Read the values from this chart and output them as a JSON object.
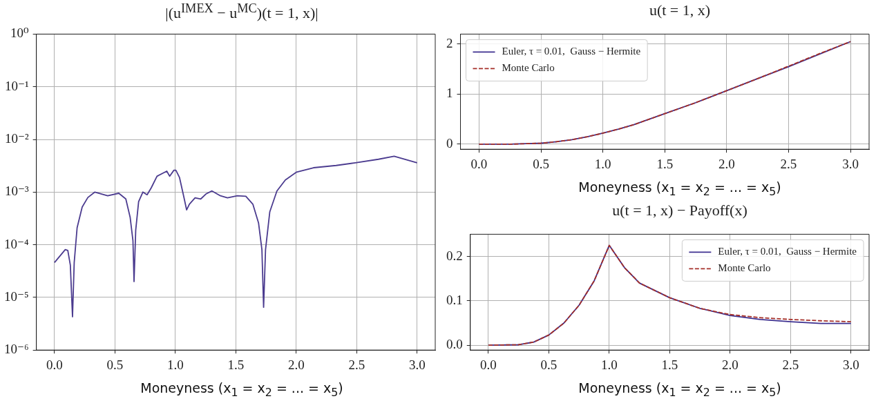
{
  "chart_data": [
    {
      "type": "line",
      "title": "|(u$^{IMEX}$ − u$^{MC}$)(t = 1, x)|",
      "xlabel": "Moneyness (x$_{1}$ = x$_{2}$ = ... = x$_{5}$)",
      "log": "y",
      "grid": true,
      "xlim": [
        -0.15,
        3.15
      ],
      "ylim": [
        1e-06,
        1
      ],
      "xticks": [
        {
          "value": 0,
          "label": "0.0"
        },
        {
          "value": 0.5,
          "label": "0.5"
        },
        {
          "value": 1,
          "label": "1.0"
        },
        {
          "value": 1.5,
          "label": "1.5"
        },
        {
          "value": 2,
          "label": "2.0"
        },
        {
          "value": 2.5,
          "label": "2.5"
        },
        {
          "value": 3,
          "label": "3.0"
        }
      ],
      "yticks": [
        {
          "value": 1e-06,
          "label": "10⁻⁶"
        },
        {
          "value": 1e-05,
          "label": "10⁻⁵"
        },
        {
          "value": 0.0001,
          "label": "10⁻⁴"
        },
        {
          "value": 0.001,
          "label": "10⁻³"
        },
        {
          "value": 0.01,
          "label": "10⁻²"
        },
        {
          "value": 0.1,
          "label": "10⁻¹"
        },
        {
          "value": 1,
          "label": "10⁰"
        }
      ],
      "x": [
        0,
        0.089,
        0.11,
        0.131,
        0.149,
        0.163,
        0.187,
        0.229,
        0.276,
        0.334,
        0.44,
        0.532,
        0.59,
        0.626,
        0.649,
        0.658,
        0.672,
        0.696,
        0.731,
        0.766,
        0.8,
        0.848,
        0.929,
        0.953,
        0.988,
        1.004,
        1.034,
        1.069,
        1.093,
        1.116,
        1.163,
        1.21,
        1.256,
        1.303,
        1.373,
        1.431,
        1.513,
        1.583,
        1.641,
        1.688,
        1.716,
        1.73,
        1.746,
        1.781,
        1.84,
        1.91,
        2.003,
        2.143,
        2.33,
        2.49,
        2.68,
        2.81,
        3.0
      ],
      "series": [
        {
          "color": "#4b3b8f",
          "values": [
            4.6e-05,
            8.1e-05,
            7.8e-05,
            4.1e-05,
            4.3e-06,
            4.6e-05,
            0.00021,
            0.00052,
            0.00079,
            0.001,
            0.00085,
            0.00095,
            0.00074,
            0.00033,
            0.00012,
            2e-05,
            0.00019,
            0.00066,
            0.001,
            0.00089,
            0.0012,
            0.002,
            0.0025,
            0.002,
            0.0026,
            0.0026,
            0.0019,
            0.00083,
            0.00046,
            0.00059,
            0.00078,
            0.00074,
            0.00093,
            0.00105,
            0.00085,
            0.00078,
            0.00085,
            0.00083,
            0.00059,
            0.00026,
            8.1e-05,
            6.5e-06,
            8.1e-05,
            0.00042,
            0.00105,
            0.0017,
            0.0024,
            0.0029,
            0.0032,
            0.0036,
            0.0042,
            0.0048,
            0.0036
          ]
        }
      ]
    },
    {
      "type": "line",
      "title": "u(t = 1, x)",
      "xlabel": "Moneyness (x$_{1}$ = x$_{2}$ = ... = x$_{5}$)",
      "grid": true,
      "legend": "top left",
      "xlim": [
        -0.15,
        3.15
      ],
      "ylim": [
        -0.1,
        2.2
      ],
      "xticks": [
        {
          "value": 0,
          "label": "0.0"
        },
        {
          "value": 0.5,
          "label": "0.5"
        },
        {
          "value": 1,
          "label": "1.0"
        },
        {
          "value": 1.5,
          "label": "1.5"
        },
        {
          "value": 2,
          "label": "2.0"
        },
        {
          "value": 2.5,
          "label": "2.5"
        },
        {
          "value": 3,
          "label": "3.0"
        }
      ],
      "yticks": [
        0,
        1,
        2
      ],
      "x": [
        0,
        0.25,
        0.375,
        0.5,
        0.625,
        0.75,
        0.875,
        1.0,
        1.125,
        1.25,
        1.5,
        1.75,
        2.0,
        2.25,
        2.5,
        2.75,
        3.0
      ],
      "series": [
        {
          "name": "Euler, τ = 0.01,  Gauss − Hermite",
          "color": "#3c2f8f",
          "line_style": "solid",
          "values": [
            0,
            0,
            0.01,
            0.02,
            0.05,
            0.09,
            0.15,
            0.22,
            0.3,
            0.39,
            0.61,
            0.83,
            1.07,
            1.31,
            1.55,
            1.8,
            2.05
          ]
        },
        {
          "name": "Monte Carlo",
          "color": "#a5302a",
          "line_style": "dashed",
          "values": [
            0,
            0,
            0.01,
            0.02,
            0.05,
            0.09,
            0.15,
            0.22,
            0.3,
            0.39,
            0.61,
            0.83,
            1.07,
            1.31,
            1.56,
            1.81,
            2.05
          ]
        }
      ]
    },
    {
      "type": "line",
      "title": "u(t = 1, x) − Payoff(x)",
      "xlabel": "Moneyness (x$_{1}$ = x$_{2}$ = ... = x$_{5}$)",
      "grid": true,
      "legend": "top right",
      "xlim": [
        -0.15,
        3.15
      ],
      "ylim": [
        -0.011,
        0.25
      ],
      "xticks": [
        {
          "value": 0,
          "label": "0.0"
        },
        {
          "value": 0.5,
          "label": "0.5"
        },
        {
          "value": 1,
          "label": "1.0"
        },
        {
          "value": 1.5,
          "label": "1.5"
        },
        {
          "value": 2,
          "label": "2.0"
        },
        {
          "value": 2.5,
          "label": "2.5"
        },
        {
          "value": 3,
          "label": "3.0"
        }
      ],
      "yticks": [
        {
          "value": 0,
          "label": "0.0"
        },
        {
          "value": 0.1,
          "label": "0.1"
        },
        {
          "value": 0.2,
          "label": "0.2"
        }
      ],
      "x": [
        0,
        0.25,
        0.375,
        0.5,
        0.625,
        0.75,
        0.875,
        1.0,
        1.125,
        1.25,
        1.5,
        1.75,
        2.0,
        2.25,
        2.5,
        2.75,
        3.0
      ],
      "series": [
        {
          "name": "Euler, τ = 0.01,  Gauss − Hermite",
          "color": "#3c2f8f",
          "line_style": "solid",
          "values": [
            0,
            0.001,
            0.007,
            0.023,
            0.05,
            0.09,
            0.145,
            0.225,
            0.175,
            0.14,
            0.107,
            0.083,
            0.067,
            0.058,
            0.053,
            0.049,
            0.049
          ]
        },
        {
          "name": "Monte Carlo",
          "color": "#a5302a",
          "line_style": "dashed",
          "values": [
            0,
            0.001,
            0.007,
            0.023,
            0.05,
            0.09,
            0.145,
            0.225,
            0.175,
            0.14,
            0.107,
            0.083,
            0.069,
            0.062,
            0.058,
            0.055,
            0.053
          ]
        }
      ]
    }
  ]
}
